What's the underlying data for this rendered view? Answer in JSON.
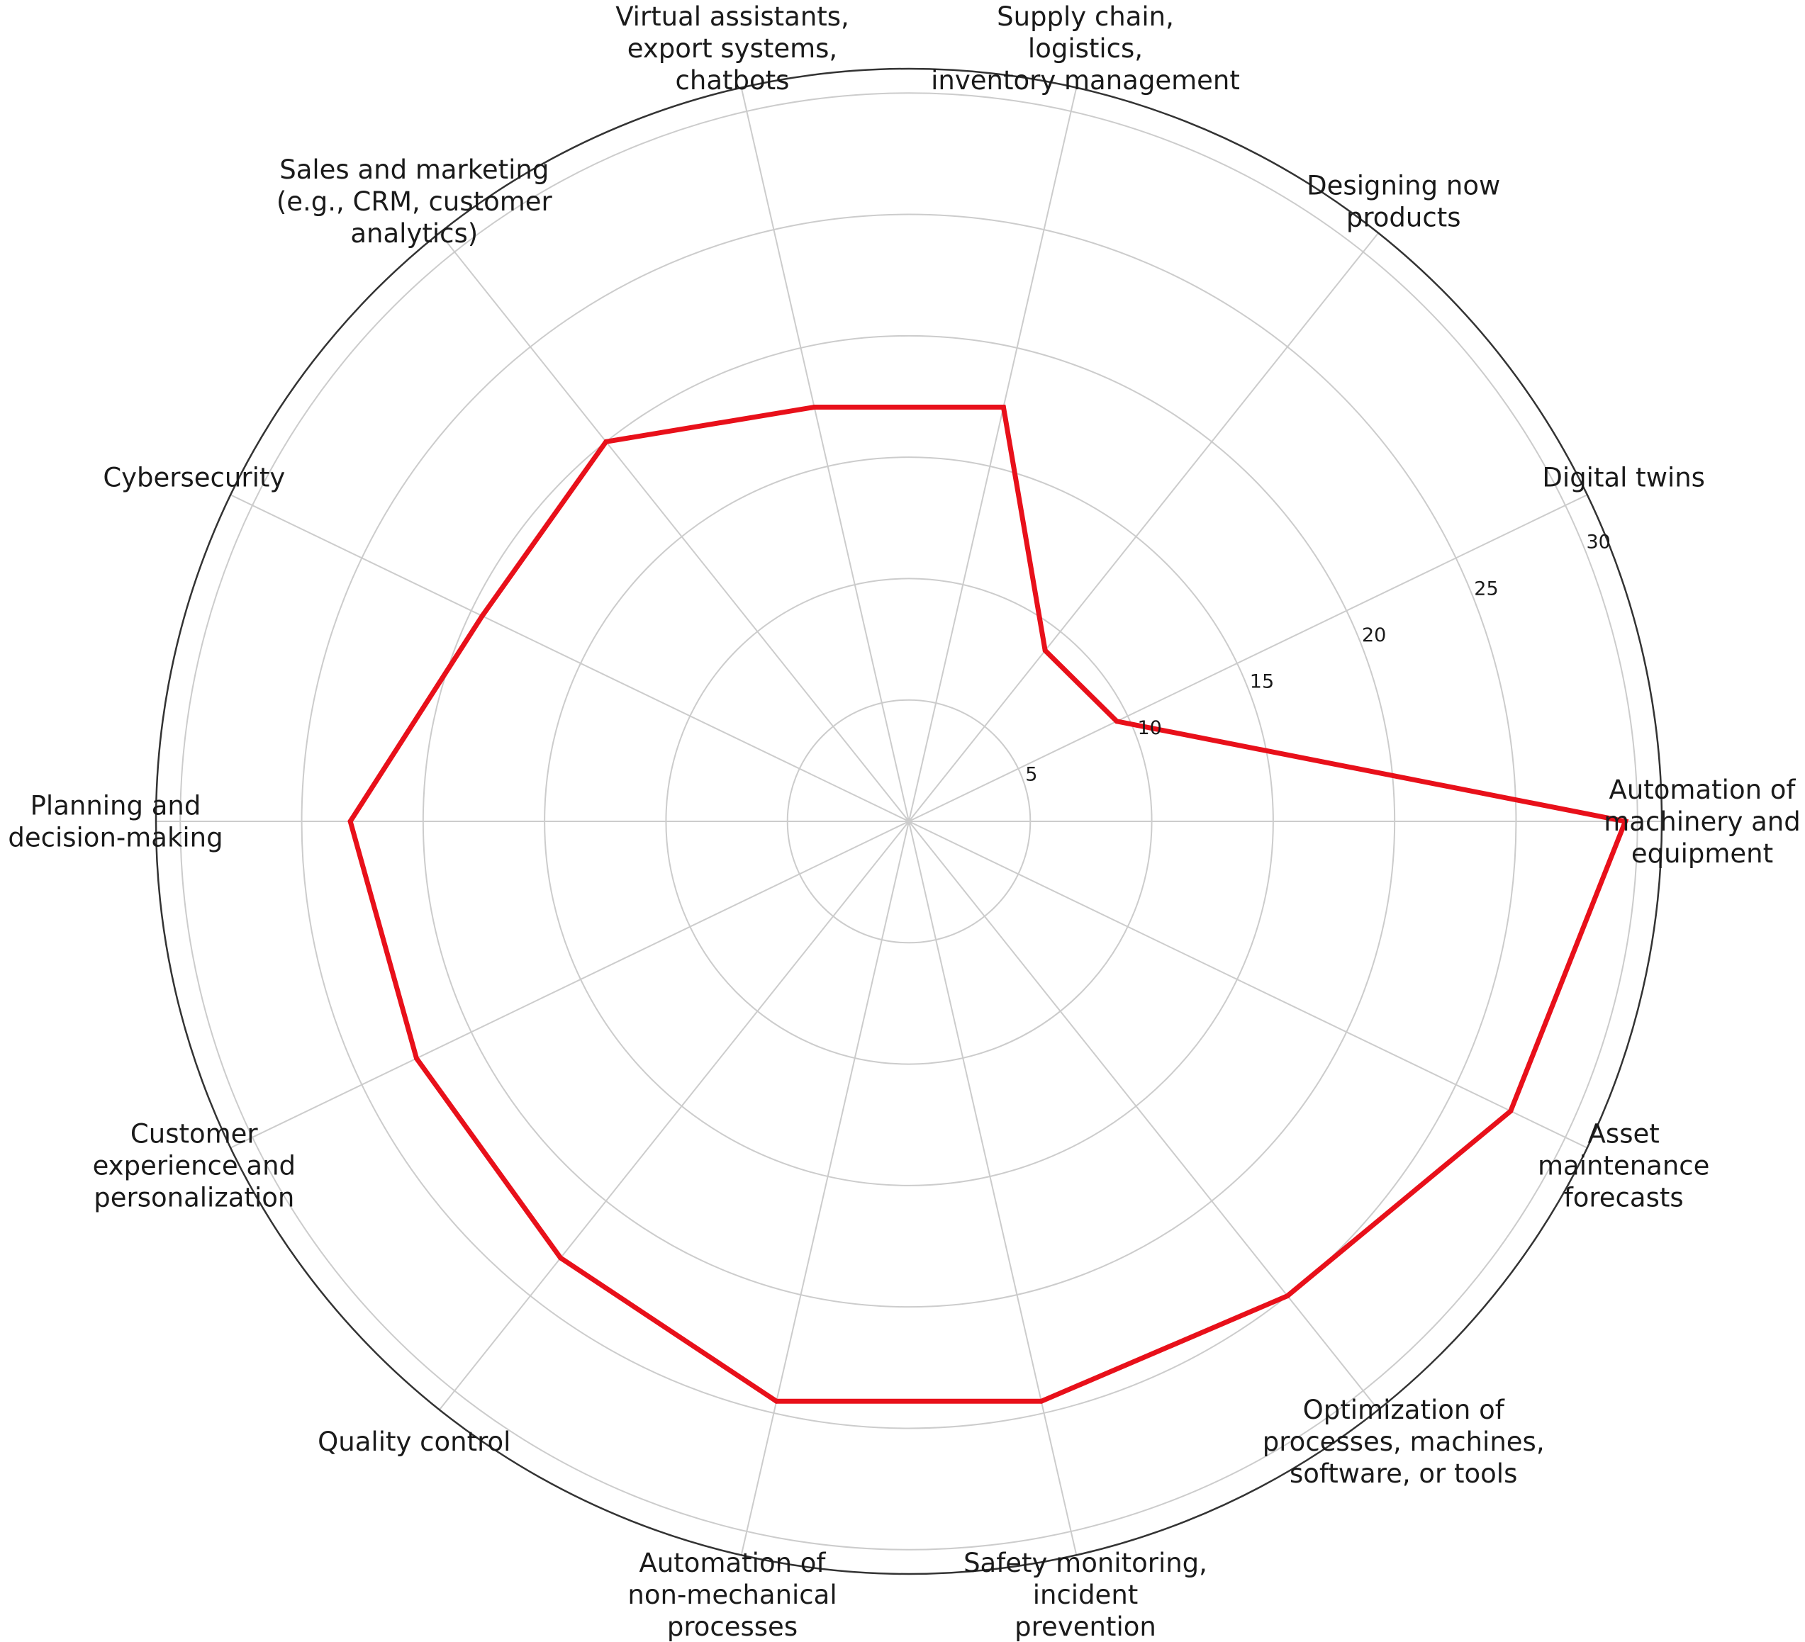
{
  "chart_data": {
    "type": "radar",
    "categories": [
      "Automation of machinery and equipment",
      "Digital twins",
      "Designing now products",
      "Supply chain, logistics, inventory management",
      "Virtual assistants, export systems, chatbots",
      "Sales and marketing (e.g., CRM, customer analytics)",
      "Cybersecurity",
      "Planning and decision-making",
      "Customer experience and personalization",
      "Quality control",
      "Automation of non-mechanical processes",
      "Safety monitoring, incident prevention",
      "Optimization of processes, machines, software, or tools",
      "Asset maintenance forecasts"
    ],
    "category_lines": [
      [
        "Automation of",
        "machinery and",
        "equipment"
      ],
      [
        "Digital twins"
      ],
      [
        "Designing now",
        "products"
      ],
      [
        "Supply chain,",
        "logistics,",
        "inventory management"
      ],
      [
        "Virtual assistants,",
        "export systems,",
        "chatbots"
      ],
      [
        "Sales and marketing",
        "(e.g., CRM, customer",
        "analytics)"
      ],
      [
        "Cybersecurity"
      ],
      [
        "Planning and",
        "decision-making"
      ],
      [
        "Customer",
        "experience and",
        "personalization"
      ],
      [
        "Quality control"
      ],
      [
        "Automation of",
        "non-mechanical",
        "processes"
      ],
      [
        "Safety monitoring,",
        "incident",
        "prevention"
      ],
      [
        "Optimization of",
        "processes, machines,",
        "software, or tools"
      ],
      [
        "Asset",
        "maintenance",
        "forecasts"
      ]
    ],
    "series": [
      {
        "values": [
          29.5,
          9.5,
          9.0,
          17.5,
          17.5,
          20.0,
          19.5,
          23.0,
          22.5,
          23.0,
          24.5,
          24.5,
          25.0,
          27.5
        ]
      }
    ],
    "rlim": [
      0,
      31
    ],
    "rticks": [
      5,
      10,
      15,
      20,
      25,
      30
    ],
    "rtick_labels": [
      "5",
      "10",
      "15",
      "20",
      "25",
      "30"
    ],
    "grid": true,
    "colors": {
      "series": "#e8101a",
      "grid": "#cccccc",
      "frame": "#333333"
    }
  }
}
